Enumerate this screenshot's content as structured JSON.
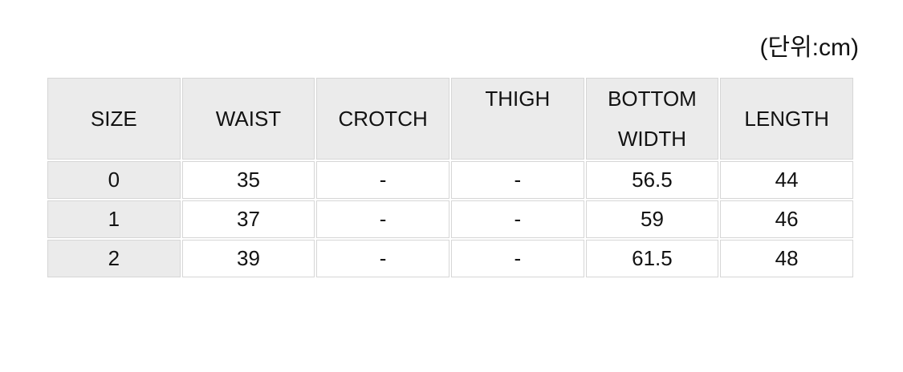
{
  "page": {
    "unit_label": "(단위:cm)"
  },
  "size_table": {
    "header": [
      {
        "label": "SIZE"
      },
      {
        "label": "WAIST"
      },
      {
        "label": "CROTCH"
      },
      {
        "label": "THIGH"
      },
      {
        "label": "BOTTOM WIDTH",
        "line1": "BOTTOM",
        "line2": "WIDTH"
      },
      {
        "label": "LENGTH"
      }
    ],
    "rows": [
      [
        "0",
        "35",
        "-",
        "-",
        "56.5",
        "44"
      ],
      [
        "1",
        "37",
        "-",
        "-",
        "59",
        "46"
      ],
      [
        "2",
        "39",
        "-",
        "-",
        "61.5",
        "48"
      ]
    ],
    "colors": {
      "header_bg": "#ebebeb",
      "cell_border": "#d6d6d6",
      "text": "#121212",
      "background": "#ffffff"
    }
  }
}
